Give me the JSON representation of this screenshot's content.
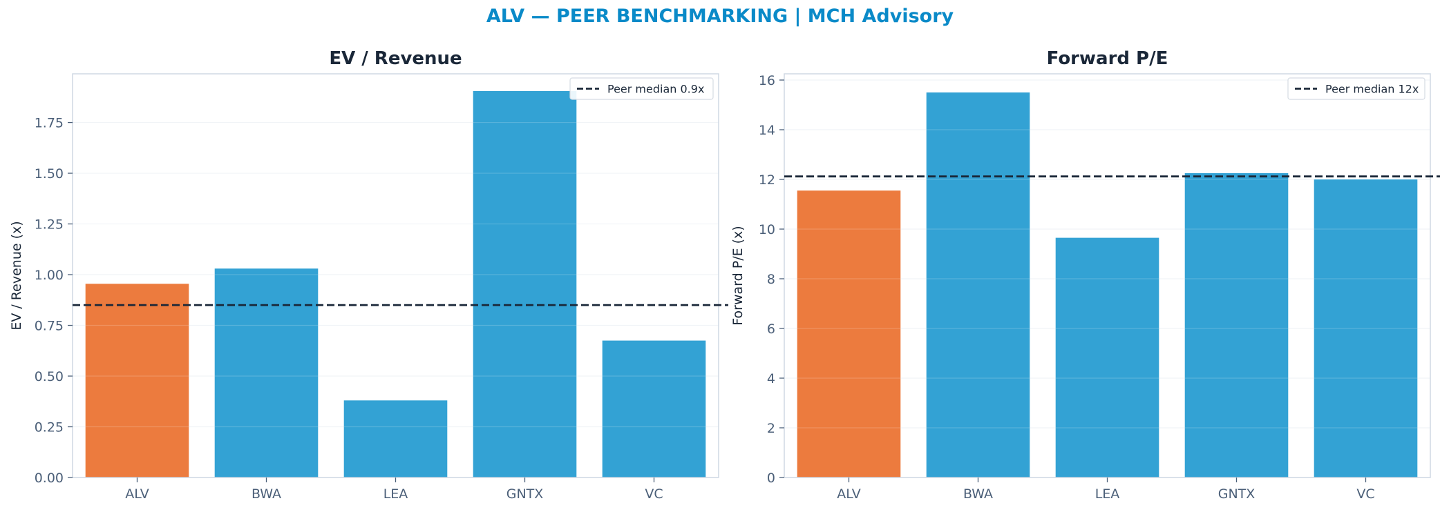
{
  "suptitle": "ALV — PEER BENCHMARKING | MCH Advisory",
  "colors": {
    "highlight": "#ec7b3e",
    "peer": "#33a2d4",
    "median_line": "#1a2738",
    "title": "#1a2738",
    "suptitle": "#0a8ac8",
    "tick": "#4b5f78",
    "axes_edge": "#cfd8e3",
    "grid": "#eef2f6"
  },
  "chart_data": [
    {
      "type": "bar",
      "title": "EV / Revenue",
      "xlabel": "",
      "ylabel": "EV / Revenue (x)",
      "categories": [
        "ALV",
        "BWA",
        "LEA",
        "GNTX",
        "VC"
      ],
      "values": [
        0.955,
        1.03,
        0.38,
        1.905,
        0.675
      ],
      "highlight_category": "ALV",
      "reference_line": {
        "label": "Peer median 0.9x",
        "value": 0.85,
        "style": "dashed"
      },
      "ylim": [
        0,
        1.99
      ],
      "yticks": [
        0.0,
        0.25,
        0.5,
        0.75,
        1.0,
        1.25,
        1.5,
        1.75
      ],
      "ytick_labels": [
        "0.00",
        "0.25",
        "0.50",
        "0.75",
        "1.00",
        "1.25",
        "1.50",
        "1.75"
      ],
      "grid": true,
      "legend_position": "top-right"
    },
    {
      "type": "bar",
      "title": "Forward P/E",
      "xlabel": "",
      "ylabel": "Forward P/E (x)",
      "categories": [
        "ALV",
        "BWA",
        "LEA",
        "GNTX",
        "VC"
      ],
      "values": [
        11.55,
        15.5,
        9.65,
        12.25,
        12.0
      ],
      "highlight_category": "ALV",
      "reference_line": {
        "label": "Peer median 12x",
        "value": 12.12,
        "style": "dashed"
      },
      "ylim": [
        0,
        16.25
      ],
      "yticks": [
        0,
        2,
        4,
        6,
        8,
        10,
        12,
        14,
        16
      ],
      "ytick_labels": [
        "0",
        "2",
        "4",
        "6",
        "8",
        "10",
        "12",
        "14",
        "16"
      ],
      "grid": true,
      "legend_position": "top-right"
    }
  ]
}
